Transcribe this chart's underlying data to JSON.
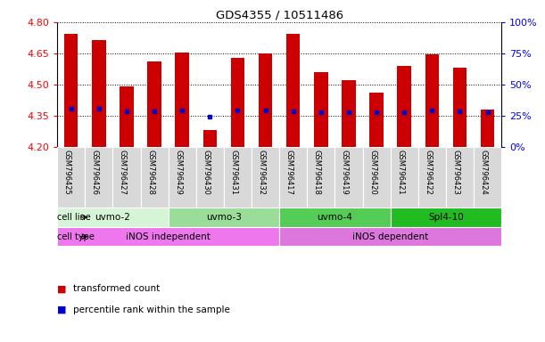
{
  "title": "GDS4355 / 10511486",
  "samples": [
    "GSM796425",
    "GSM796426",
    "GSM796427",
    "GSM796428",
    "GSM796429",
    "GSM796430",
    "GSM796431",
    "GSM796432",
    "GSM796417",
    "GSM796418",
    "GSM796419",
    "GSM796420",
    "GSM796421",
    "GSM796422",
    "GSM796423",
    "GSM796424"
  ],
  "bar_values": [
    4.745,
    4.715,
    4.49,
    4.61,
    4.655,
    4.28,
    4.63,
    4.65,
    4.745,
    4.56,
    4.52,
    4.46,
    4.59,
    4.645,
    4.58,
    4.38
  ],
  "blue_dot_values": [
    4.385,
    4.385,
    4.37,
    4.37,
    4.375,
    4.345,
    4.375,
    4.375,
    4.37,
    4.365,
    4.365,
    4.365,
    4.365,
    4.375,
    4.37,
    4.365
  ],
  "ylim": [
    4.2,
    4.8
  ],
  "yticks": [
    4.2,
    4.35,
    4.5,
    4.65,
    4.8
  ],
  "right_yticks": [
    0,
    25,
    50,
    75,
    100
  ],
  "right_ytick_labels": [
    "0%",
    "25%",
    "50%",
    "75%",
    "100%"
  ],
  "bar_color": "#cc0000",
  "blue_color": "#0000cc",
  "sample_box_color": "#d8d8d8",
  "cell_lines": [
    {
      "label": "uvmo-2",
      "start": 0,
      "end": 4,
      "color": "#d6f5d6"
    },
    {
      "label": "uvmo-3",
      "start": 4,
      "end": 8,
      "color": "#99dd99"
    },
    {
      "label": "uvmo-4",
      "start": 8,
      "end": 12,
      "color": "#55cc55"
    },
    {
      "label": "Spl4-10",
      "start": 12,
      "end": 16,
      "color": "#22bb22"
    }
  ],
  "cell_types": [
    {
      "label": "iNOS independent",
      "start": 0,
      "end": 8,
      "color": "#ee77ee"
    },
    {
      "label": "iNOS dependent",
      "start": 8,
      "end": 16,
      "color": "#dd77dd"
    }
  ],
  "legend_items": [
    {
      "color": "#cc0000",
      "label": "transformed count"
    },
    {
      "color": "#0000cc",
      "label": "percentile rank within the sample"
    }
  ]
}
